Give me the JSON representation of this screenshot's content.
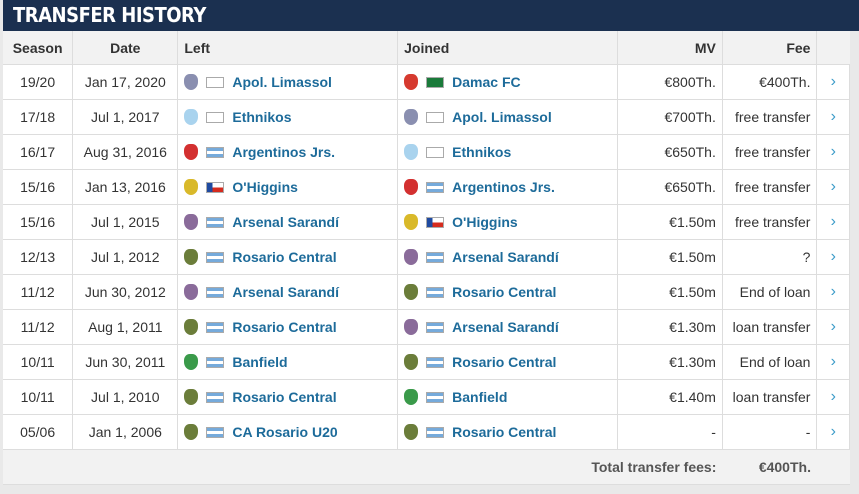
{
  "title": "TRANSFER HISTORY",
  "headers": {
    "season": "Season",
    "date": "Date",
    "left": "Left",
    "joined": "Joined",
    "mv": "MV",
    "fee": "Fee"
  },
  "rows": [
    {
      "season": "19/20",
      "date": "Jan 17, 2020",
      "left": "Apol. Limassol",
      "left_crest": "#8a8fb0",
      "left_flag": "cyprus",
      "joined": "Damac FC",
      "joined_crest": "#d63a2f",
      "joined_flag": "saudi",
      "mv": "€800Th.",
      "fee": "€400Th."
    },
    {
      "season": "17/18",
      "date": "Jul 1, 2017",
      "left": "Ethnikos",
      "left_crest": "#a9d3ee",
      "left_flag": "cyprus",
      "joined": "Apol. Limassol",
      "joined_crest": "#8a8fb0",
      "joined_flag": "cyprus",
      "mv": "€700Th.",
      "fee": "free transfer"
    },
    {
      "season": "16/17",
      "date": "Aug 31, 2016",
      "left": "Argentinos Jrs.",
      "left_crest": "#d33030",
      "left_flag": "argentina",
      "joined": "Ethnikos",
      "joined_crest": "#a9d3ee",
      "joined_flag": "cyprus",
      "mv": "€650Th.",
      "fee": "free transfer"
    },
    {
      "season": "15/16",
      "date": "Jan 13, 2016",
      "left": "O'Higgins",
      "left_crest": "#d9b92a",
      "left_flag": "chile",
      "joined": "Argentinos Jrs.",
      "joined_crest": "#d33030",
      "joined_flag": "argentina",
      "mv": "€650Th.",
      "fee": "free transfer"
    },
    {
      "season": "15/16",
      "date": "Jul 1, 2015",
      "left": "Arsenal Sarandí",
      "left_crest": "#8a6b9a",
      "left_flag": "argentina",
      "joined": "O'Higgins",
      "joined_crest": "#d9b92a",
      "joined_flag": "chile",
      "mv": "€1.50m",
      "fee": "free transfer"
    },
    {
      "season": "12/13",
      "date": "Jul 1, 2012",
      "left": "Rosario Central",
      "left_crest": "#6b7d3a",
      "left_flag": "argentina",
      "joined": "Arsenal Sarandí",
      "joined_crest": "#8a6b9a",
      "joined_flag": "argentina",
      "mv": "€1.50m",
      "fee": "?"
    },
    {
      "season": "11/12",
      "date": "Jun 30, 2012",
      "left": "Arsenal Sarandí",
      "left_crest": "#8a6b9a",
      "left_flag": "argentina",
      "joined": "Rosario Central",
      "joined_crest": "#6b7d3a",
      "joined_flag": "argentina",
      "mv": "€1.50m",
      "fee": "End of loan"
    },
    {
      "season": "11/12",
      "date": "Aug 1, 2011",
      "left": "Rosario Central",
      "left_crest": "#6b7d3a",
      "left_flag": "argentina",
      "joined": "Arsenal Sarandí",
      "joined_crest": "#8a6b9a",
      "joined_flag": "argentina",
      "mv": "€1.30m",
      "fee": "loan transfer"
    },
    {
      "season": "10/11",
      "date": "Jun 30, 2011",
      "left": "Banfield",
      "left_crest": "#3a9a4a",
      "left_flag": "argentina",
      "joined": "Rosario Central",
      "joined_crest": "#6b7d3a",
      "joined_flag": "argentina",
      "mv": "€1.30m",
      "fee": "End of loan"
    },
    {
      "season": "10/11",
      "date": "Jul 1, 2010",
      "left": "Rosario Central",
      "left_crest": "#6b7d3a",
      "left_flag": "argentina",
      "joined": "Banfield",
      "joined_crest": "#3a9a4a",
      "joined_flag": "argentina",
      "mv": "€1.40m",
      "fee": "loan transfer"
    },
    {
      "season": "05/06",
      "date": "Jan 1, 2006",
      "left": "CA Rosario U20",
      "left_crest": "#6b7d3a",
      "left_flag": "argentina",
      "joined": "Rosario Central",
      "joined_crest": "#6b7d3a",
      "joined_flag": "argentina",
      "mv": "-",
      "fee": "-"
    }
  ],
  "footer": {
    "label": "Total transfer fees:",
    "value": "€400Th."
  },
  "icons": {
    "row_link": "chevron-right-icon"
  }
}
